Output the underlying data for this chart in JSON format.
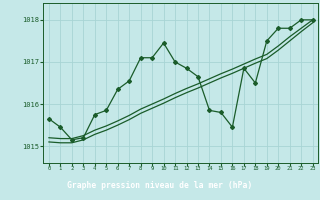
{
  "title": "Graphe pression niveau de la mer (hPa)",
  "bg_color": "#c5e8e8",
  "bottom_bar_color": "#2d6b3c",
  "grid_color": "#a8d4d4",
  "line_color": "#1a5c2a",
  "tick_label_color": "#1a5c2a",
  "ylim": [
    1014.6,
    1018.4
  ],
  "yticks": [
    1015,
    1016,
    1017,
    1018
  ],
  "xlim": [
    -0.5,
    23.5
  ],
  "x_hours": [
    0,
    1,
    2,
    3,
    4,
    5,
    6,
    7,
    8,
    9,
    10,
    11,
    12,
    13,
    14,
    15,
    16,
    17,
    18,
    19,
    20,
    21,
    22,
    23
  ],
  "y_main": [
    1015.65,
    1015.45,
    1015.15,
    1015.2,
    1015.75,
    1015.85,
    1016.35,
    1016.55,
    1017.1,
    1017.1,
    1017.45,
    1017.0,
    1016.85,
    1016.65,
    1015.85,
    1015.8,
    1015.45,
    1016.85,
    1016.5,
    1017.5,
    1017.8,
    1017.8,
    1018.0,
    1018.0
  ],
  "y_linear1": [
    1015.2,
    1015.18,
    1015.18,
    1015.25,
    1015.38,
    1015.48,
    1015.6,
    1015.73,
    1015.88,
    1016.0,
    1016.12,
    1016.25,
    1016.37,
    1016.48,
    1016.6,
    1016.72,
    1016.83,
    1016.95,
    1017.07,
    1017.18,
    1017.38,
    1017.6,
    1017.8,
    1018.0
  ],
  "y_linear2": [
    1015.1,
    1015.08,
    1015.08,
    1015.15,
    1015.28,
    1015.38,
    1015.5,
    1015.63,
    1015.78,
    1015.9,
    1016.02,
    1016.15,
    1016.27,
    1016.38,
    1016.5,
    1016.62,
    1016.73,
    1016.85,
    1016.97,
    1017.08,
    1017.28,
    1017.5,
    1017.72,
    1017.93
  ]
}
